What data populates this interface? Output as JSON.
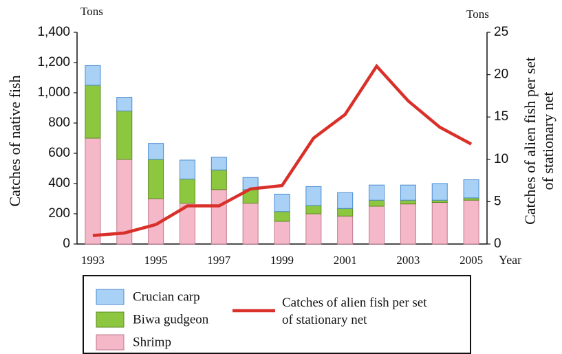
{
  "chart_data": {
    "type": "bar",
    "stacked": true,
    "ylabel_unit": "Tons",
    "y2label_unit": "Tons",
    "ylabel": "Catches of native fish",
    "y2label": [
      "Catches of alien fish per set",
      "of stationary net"
    ],
    "xlabel": "Year",
    "categories": [
      "1993",
      null,
      "1995",
      null,
      "1997",
      null,
      "1999",
      null,
      "2001",
      null,
      "2003",
      null,
      "2005"
    ],
    "series": [
      {
        "name": "Shrimp",
        "color": "#f4b8c8",
        "values": [
          700,
          560,
          300,
          270,
          360,
          270,
          150,
          200,
          185,
          250,
          265,
          275,
          290
        ]
      },
      {
        "name": "Biwa gudgeon",
        "color": "#8dc63f",
        "values": [
          350,
          320,
          260,
          160,
          130,
          90,
          65,
          55,
          50,
          40,
          25,
          15,
          15
        ]
      },
      {
        "name": "Crucian carp",
        "color": "#a9d1f5",
        "values": [
          130,
          90,
          105,
          125,
          85,
          80,
          115,
          125,
          105,
          100,
          100,
          110,
          120
        ]
      },
      {
        "name": "Catches of alien fish per set of stationary net",
        "type": "line",
        "axis": "y2",
        "color": "#d9302a",
        "values": [
          1.0,
          1.3,
          2.3,
          4.5,
          4.5,
          6.5,
          6.9,
          12.5,
          15.3,
          21.0,
          16.9,
          13.8,
          11.8
        ]
      }
    ],
    "ylim": [
      0,
      1400
    ],
    "yticks": [
      0,
      200,
      400,
      600,
      800,
      {
        "value": 1000,
        "label": "1,000"
      },
      {
        "value": 1200,
        "label": "1,200"
      },
      {
        "value": 1400,
        "label": "1,400"
      }
    ],
    "y2lim": [
      0,
      25
    ],
    "y2ticks": [
      0,
      5,
      10,
      15,
      20,
      25
    ]
  }
}
